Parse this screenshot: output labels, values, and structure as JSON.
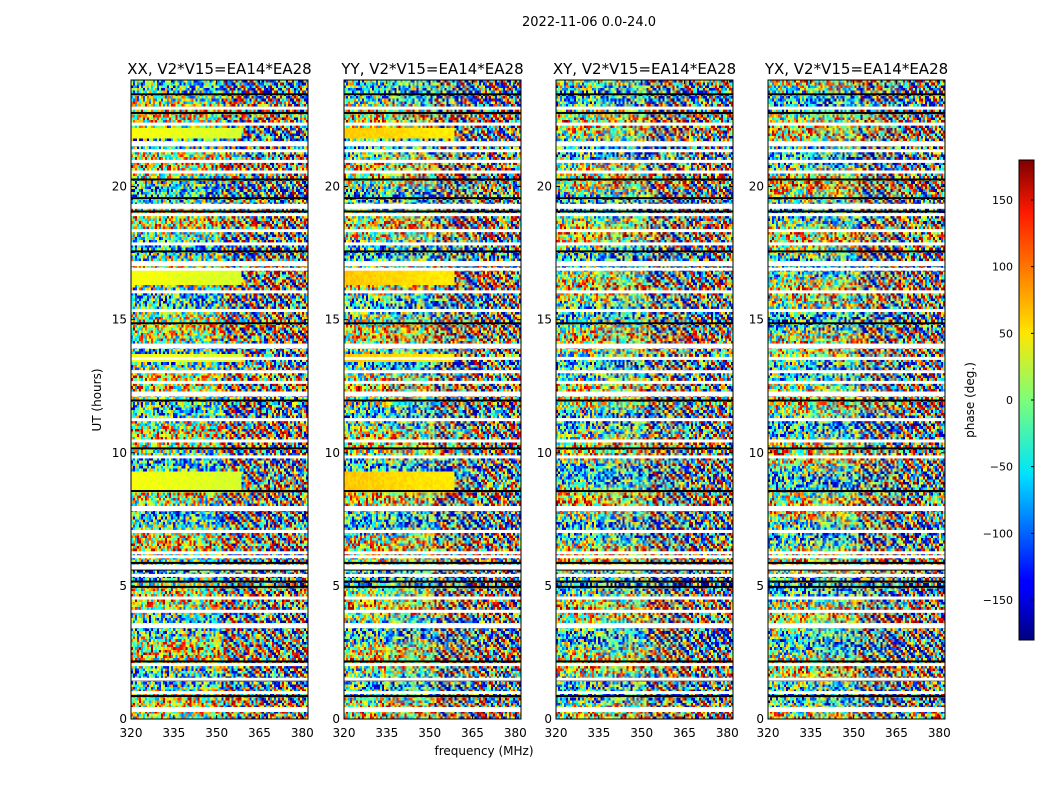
{
  "chart_data": {
    "type": "heatmap",
    "title": "2022-11-06 0.0-24.0",
    "xlabel": "frequency (MHz)",
    "ylabel": "UT (hours)",
    "xlim": [
      320,
      382
    ],
    "ylim": [
      0,
      24
    ],
    "xticks": [
      "320",
      "335",
      "350",
      "365",
      "380"
    ],
    "yticks": [
      "0",
      "5",
      "10",
      "15",
      "20"
    ],
    "panels": [
      {
        "title": "XX, V2*V15=EA14*EA28"
      },
      {
        "title": "YY, V2*V15=EA14*EA28"
      },
      {
        "title": "XY, V2*V15=EA14*EA28"
      },
      {
        "title": "YX, V2*V15=EA14*EA28"
      }
    ],
    "colorbar": {
      "label": "phase (deg.)",
      "colormap": "jet",
      "range": [
        -180,
        180
      ],
      "ticks": [
        "150",
        "100",
        "50",
        "0",
        "−50",
        "−100",
        "−150"
      ],
      "tick_values": [
        150,
        100,
        50,
        0,
        -50,
        -100,
        -150
      ]
    },
    "value_description": "Visibility phase (deg.) per frequency channel and UT time; mostly noise-like phase wrapping with horizontal bands of missing data (white) and coherent phase segments."
  }
}
